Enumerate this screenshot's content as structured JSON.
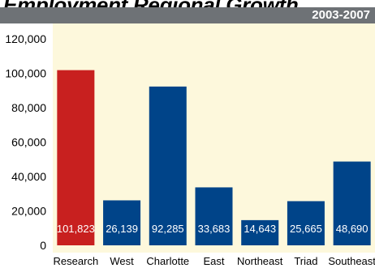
{
  "header": {
    "title": "Employment Regional Growth",
    "period": "2003-2007"
  },
  "colors": {
    "highlight_bar": "#c8201f",
    "bar": "#004489",
    "plot_background": "#fdf8dc",
    "header_bar": "#6e7276"
  },
  "chart_data": {
    "type": "bar",
    "title": "Employment Regional Growth",
    "subtitle": "2003-2007",
    "categories": [
      "Research",
      "West",
      "Charlotte",
      "East",
      "Northeast",
      "Triad",
      "Southeast"
    ],
    "values": [
      101823,
      26139,
      92285,
      33683,
      14643,
      25665,
      48690
    ],
    "value_labels": [
      "101,823",
      "26,139",
      "92,285",
      "33,683",
      "14,643",
      "25,665",
      "48,690"
    ],
    "bar_colors": [
      "#c8201f",
      "#004489",
      "#004489",
      "#004489",
      "#004489",
      "#004489",
      "#004489"
    ],
    "ylim": [
      0,
      120000
    ],
    "yticks": [
      0,
      20000,
      40000,
      60000,
      80000,
      100000,
      120000
    ],
    "ytick_labels": [
      "0",
      "20,000",
      "40,000",
      "60,000",
      "80,000",
      "100,000",
      "120,000"
    ],
    "xlabel": "",
    "ylabel": "",
    "grid": false,
    "legend": "none"
  }
}
